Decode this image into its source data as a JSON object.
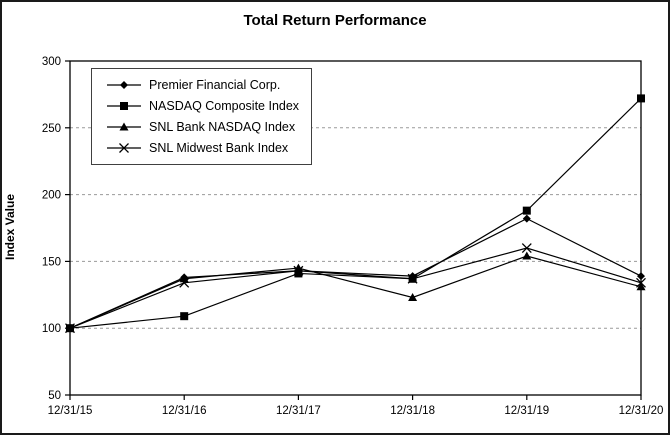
{
  "chart_data": {
    "type": "line",
    "title": "Total Return Performance",
    "ylabel": "Index Value",
    "xlabel": "",
    "ylim": [
      50,
      300
    ],
    "ytick_step": 50,
    "grid": "horizontal-dashed-at-100-150-200-250",
    "legend_position": "top-left-inside",
    "categories": [
      "12/31/15",
      "12/31/16",
      "12/31/17",
      "12/31/18",
      "12/31/19",
      "12/31/20"
    ],
    "series": [
      {
        "name": "Premier Financial Corp.",
        "marker": "diamond",
        "values": [
          100,
          138,
          143,
          139,
          182,
          139
        ]
      },
      {
        "name": "NASDAQ Composite Index",
        "marker": "square",
        "values": [
          100,
          109,
          141,
          137,
          188,
          272
        ]
      },
      {
        "name": "SNL Bank NASDAQ Index",
        "marker": "triangle",
        "values": [
          100,
          137,
          145,
          123,
          154,
          131
        ]
      },
      {
        "name": "SNL Midwest Bank Index",
        "marker": "x-cross",
        "values": [
          100,
          134,
          143,
          137,
          160,
          134
        ]
      }
    ],
    "colors": {
      "line": "#000000",
      "marker": "#000000",
      "grid": "#9a9a9a",
      "axis": "#000000",
      "background": "#ffffff"
    }
  }
}
